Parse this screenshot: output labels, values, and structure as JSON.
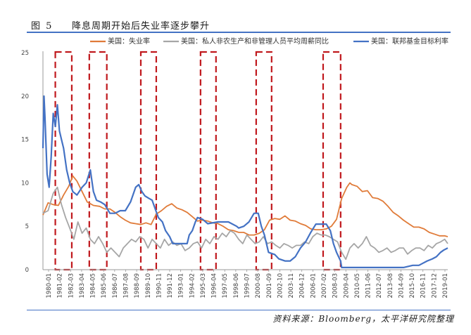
{
  "figure": {
    "number": "图 5",
    "title": "降息周期开始后失业率逐步攀升",
    "source": "资料来源：Bloomberg，太平洋研究院整理"
  },
  "colors": {
    "unemployment": "#e07b39",
    "wages": "#a6a6a6",
    "fed_funds": "#4472c4",
    "easing_box": "#c0181d",
    "rule": "#4472c4"
  },
  "chart_data": {
    "type": "line",
    "y_ticks": [
      0,
      5,
      10,
      15,
      20,
      25
    ],
    "ylim": [
      0,
      25
    ],
    "x_ticks": [
      "1980-01",
      "1981-02",
      "1982-03",
      "1983-04",
      "1984-05",
      "1985-06",
      "1986-07",
      "1987-08",
      "1988-09",
      "1989-10",
      "1990-11",
      "1991-12",
      "1993-01",
      "1994-02",
      "1995-03",
      "1996-04",
      "1997-05",
      "1998-06",
      "1999-07",
      "2000-08",
      "2001-09",
      "2002-10",
      "2003-11",
      "2004-12",
      "2006-01",
      "2007-02",
      "2008-03",
      "2009-04",
      "2010-05",
      "2011-06",
      "2012-07",
      "2013-08",
      "2014-09",
      "2015-10",
      "2016-11",
      "2017-12",
      "2019-01"
    ],
    "xlim": [
      1980.0,
      2019.3
    ],
    "grid": false,
    "legend_position": "top",
    "easing_periods": [
      {
        "start": 1981.2,
        "end": 1982.8
      },
      {
        "start": 1984.5,
        "end": 1986.2
      },
      {
        "start": 1989.5,
        "end": 1991.0
      },
      {
        "start": 1995.3,
        "end": 1996.8
      },
      {
        "start": 2000.7,
        "end": 2002.2
      },
      {
        "start": 2007.2,
        "end": 2008.9
      }
    ],
    "series": [
      {
        "name": "美国：失业率",
        "x": [
          1980.0,
          1980.5,
          1981.0,
          1981.5,
          1982.0,
          1982.5,
          1982.9,
          1983.3,
          1983.8,
          1984.3,
          1984.9,
          1985.5,
          1986.0,
          1986.5,
          1987.0,
          1987.5,
          1988.0,
          1988.5,
          1989.0,
          1989.5,
          1990.0,
          1990.5,
          1991.0,
          1991.5,
          1992.0,
          1992.5,
          1993.0,
          1993.5,
          1994.0,
          1994.5,
          1995.0,
          1995.5,
          1996.0,
          1996.5,
          1997.0,
          1997.5,
          1998.0,
          1998.5,
          1999.0,
          1999.5,
          2000.0,
          2000.5,
          2001.0,
          2001.5,
          2002.0,
          2002.5,
          2003.0,
          2003.5,
          2004.0,
          2004.5,
          2005.0,
          2005.5,
          2006.0,
          2006.5,
          2007.0,
          2007.5,
          2008.0,
          2008.5,
          2009.0,
          2009.5,
          2009.8,
          2010.0,
          2010.5,
          2011.0,
          2011.5,
          2012.0,
          2012.5,
          2013.0,
          2013.5,
          2014.0,
          2014.5,
          2015.0,
          2015.5,
          2016.0,
          2016.5,
          2017.0,
          2017.5,
          2018.0,
          2018.5,
          2019.0,
          2019.3
        ],
        "y": [
          6.3,
          7.7,
          7.5,
          7.4,
          8.6,
          9.6,
          10.8,
          10.2,
          9.0,
          7.8,
          7.4,
          7.3,
          7.0,
          7.0,
          6.6,
          6.1,
          5.7,
          5.4,
          5.3,
          5.2,
          5.4,
          5.2,
          6.4,
          6.8,
          7.3,
          7.6,
          7.1,
          6.9,
          6.6,
          6.1,
          5.6,
          5.7,
          5.6,
          5.4,
          5.3,
          5.0,
          4.6,
          4.5,
          4.3,
          4.3,
          4.0,
          4.0,
          4.2,
          4.6,
          5.7,
          5.9,
          5.8,
          6.2,
          5.7,
          5.6,
          5.3,
          5.1,
          4.7,
          4.6,
          4.6,
          4.7,
          5.0,
          5.8,
          8.2,
          9.5,
          10.0,
          9.8,
          9.6,
          9.0,
          9.1,
          8.3,
          8.2,
          7.9,
          7.3,
          6.6,
          6.2,
          5.7,
          5.3,
          4.9,
          4.9,
          4.7,
          4.3,
          4.1,
          3.9,
          3.9,
          3.8
        ]
      },
      {
        "name": "美国：私人非农生产和非管理人员平均周薪同比",
        "x": [
          1980.0,
          1980.5,
          1981.0,
          1981.4,
          1981.8,
          1982.2,
          1982.6,
          1983.0,
          1983.4,
          1983.8,
          1984.2,
          1984.6,
          1985.0,
          1985.4,
          1985.8,
          1986.2,
          1986.6,
          1987.0,
          1987.4,
          1987.8,
          1988.2,
          1988.6,
          1989.0,
          1989.4,
          1989.8,
          1990.2,
          1990.6,
          1991.0,
          1991.4,
          1991.8,
          1992.2,
          1992.6,
          1993.0,
          1993.4,
          1993.8,
          1994.2,
          1994.6,
          1995.0,
          1995.4,
          1995.8,
          1996.2,
          1996.6,
          1997.0,
          1997.4,
          1997.8,
          1998.2,
          1998.6,
          1999.0,
          1999.4,
          1999.8,
          2000.2,
          2000.6,
          2001.0,
          2001.4,
          2001.8,
          2002.2,
          2002.6,
          2003.0,
          2003.4,
          2003.8,
          2004.2,
          2004.6,
          2005.0,
          2005.4,
          2005.8,
          2006.2,
          2006.6,
          2007.0,
          2007.4,
          2007.8,
          2008.2,
          2008.6,
          2009.0,
          2009.4,
          2009.8,
          2010.2,
          2010.6,
          2011.0,
          2011.4,
          2011.8,
          2012.2,
          2012.6,
          2013.0,
          2013.4,
          2013.8,
          2014.2,
          2014.6,
          2015.0,
          2015.4,
          2015.8,
          2016.2,
          2016.6,
          2017.0,
          2017.4,
          2017.8,
          2018.2,
          2018.6,
          2019.0,
          2019.3
        ],
        "y": [
          6.5,
          6.8,
          8.8,
          9.5,
          7.5,
          6.0,
          4.8,
          3.5,
          5.5,
          4.2,
          4.8,
          3.5,
          3.0,
          3.8,
          3.0,
          2.0,
          2.5,
          2.0,
          1.5,
          2.5,
          3.0,
          3.5,
          3.2,
          3.8,
          3.5,
          2.5,
          3.5,
          3.0,
          2.5,
          3.5,
          2.8,
          3.2,
          2.8,
          3.0,
          2.2,
          2.5,
          3.0,
          3.2,
          2.5,
          3.5,
          3.0,
          3.8,
          3.5,
          4.2,
          3.8,
          4.5,
          4.2,
          3.5,
          3.0,
          4.0,
          3.5,
          3.0,
          3.2,
          3.8,
          3.0,
          3.2,
          2.8,
          2.5,
          3.0,
          2.8,
          2.5,
          2.8,
          2.8,
          3.2,
          3.0,
          3.8,
          4.2,
          4.0,
          4.0,
          3.8,
          3.5,
          3.2,
          2.0,
          1.2,
          2.5,
          3.0,
          2.5,
          3.0,
          3.8,
          2.8,
          2.5,
          2.0,
          2.2,
          2.5,
          2.0,
          2.2,
          2.5,
          2.5,
          1.8,
          2.2,
          2.5,
          2.5,
          2.2,
          2.8,
          2.5,
          3.0,
          3.2,
          3.5,
          3.0
        ]
      },
      {
        "name": "美国：联邦基金目标利率",
        "x": [
          1980.0,
          1980.1,
          1980.2,
          1980.4,
          1980.6,
          1980.8,
          1981.0,
          1981.2,
          1981.4,
          1981.6,
          1981.8,
          1982.0,
          1982.3,
          1982.6,
          1982.9,
          1983.3,
          1983.8,
          1984.2,
          1984.6,
          1984.9,
          1985.2,
          1985.6,
          1986.0,
          1986.5,
          1987.0,
          1987.5,
          1988.0,
          1988.5,
          1989.0,
          1989.3,
          1989.6,
          1989.9,
          1990.3,
          1990.6,
          1990.9,
          1991.2,
          1991.6,
          1991.9,
          1992.3,
          1992.6,
          1993.0,
          1993.5,
          1994.0,
          1994.2,
          1994.5,
          1994.8,
          1995.0,
          1995.5,
          1996.0,
          1997.0,
          1998.0,
          1998.8,
          1999.0,
          1999.5,
          2000.0,
          2000.5,
          2000.9,
          2001.2,
          2001.5,
          2001.9,
          2002.5,
          2002.9,
          2003.5,
          2004.0,
          2004.5,
          2005.0,
          2005.5,
          2006.0,
          2006.5,
          2007.0,
          2007.5,
          2007.9,
          2008.2,
          2008.5,
          2008.9,
          2009.0,
          2010.0,
          2011.0,
          2012.0,
          2013.0,
          2014.0,
          2015.0,
          2015.9,
          2016.5,
          2016.9,
          2017.3,
          2017.8,
          2018.2,
          2018.6,
          2018.9,
          2019.3
        ],
        "y": [
          14.0,
          20.0,
          17.5,
          11.0,
          9.5,
          13.0,
          18.0,
          16.5,
          19.0,
          16.0,
          15.0,
          14.0,
          11.5,
          10.0,
          9.0,
          8.6,
          9.5,
          10.0,
          11.5,
          9.0,
          8.0,
          7.8,
          7.5,
          6.5,
          6.5,
          6.8,
          6.8,
          7.8,
          9.5,
          9.8,
          9.0,
          8.5,
          8.2,
          8.0,
          7.0,
          6.0,
          5.5,
          4.5,
          3.8,
          3.0,
          3.0,
          3.0,
          3.0,
          4.0,
          4.5,
          5.5,
          6.0,
          5.8,
          5.3,
          5.5,
          5.5,
          5.0,
          4.8,
          5.0,
          5.5,
          6.5,
          6.5,
          5.0,
          4.0,
          2.0,
          1.75,
          1.25,
          1.0,
          1.0,
          1.5,
          2.5,
          3.2,
          4.3,
          5.25,
          5.25,
          5.25,
          4.5,
          3.0,
          2.0,
          1.0,
          0.25,
          0.25,
          0.25,
          0.25,
          0.25,
          0.25,
          0.25,
          0.5,
          0.5,
          0.75,
          1.0,
          1.25,
          1.5,
          2.0,
          2.25,
          2.5
        ]
      }
    ]
  }
}
